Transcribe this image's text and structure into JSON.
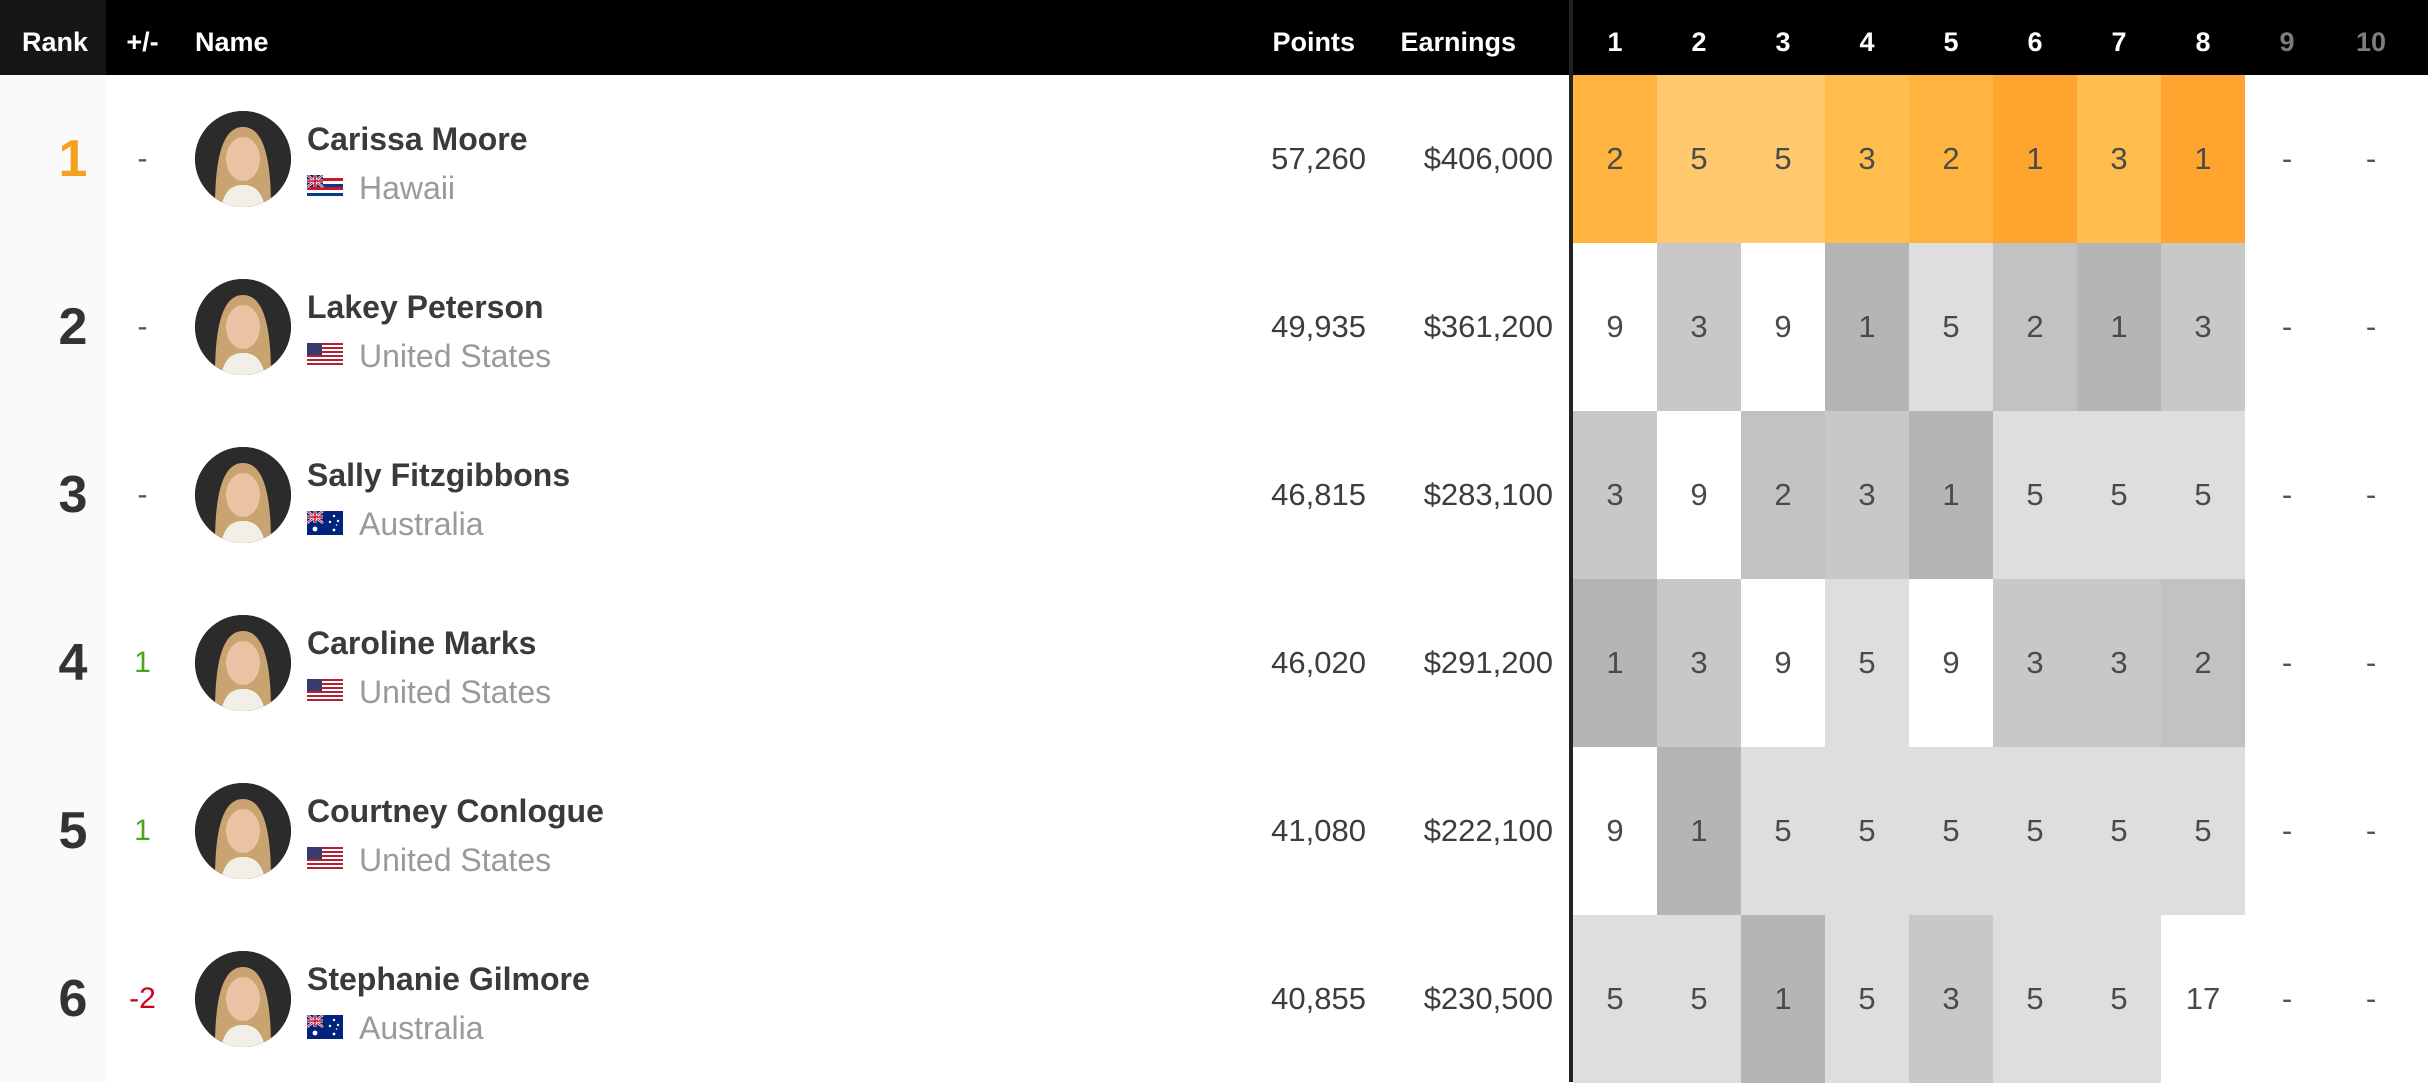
{
  "header": {
    "rank": "Rank",
    "change": "+/-",
    "name": "Name",
    "points": "Points",
    "earnings": "Earnings",
    "events": [
      "1",
      "2",
      "3",
      "4",
      "5",
      "6",
      "7",
      "8",
      "9",
      "10"
    ]
  },
  "colors": {
    "gold_rank": "#f5a020",
    "up": "#4ea31d",
    "down": "#d0021b",
    "result_1": "#ffa52f",
    "result_2": "#ffb440",
    "result_3": "#ffbd4e",
    "result_5": "#ffc970"
  },
  "rows": [
    {
      "rank": "1",
      "change": "-",
      "change_dir": "none",
      "name": "Carissa Moore",
      "country": "Hawaii",
      "flag": "hawaii-flag-icon",
      "points": "57,260",
      "earnings": "$406,000",
      "results": [
        "2",
        "5",
        "5",
        "3",
        "2",
        "1",
        "3",
        "1",
        "-",
        "-"
      ]
    },
    {
      "rank": "2",
      "change": "-",
      "change_dir": "none",
      "name": "Lakey Peterson",
      "country": "United States",
      "flag": "us-flag-icon",
      "points": "49,935",
      "earnings": "$361,200",
      "results": [
        "9",
        "3",
        "9",
        "1",
        "5",
        "2",
        "1",
        "3",
        "-",
        "-"
      ]
    },
    {
      "rank": "3",
      "change": "-",
      "change_dir": "none",
      "name": "Sally Fitzgibbons",
      "country": "Australia",
      "flag": "australia-flag-icon",
      "points": "46,815",
      "earnings": "$283,100",
      "results": [
        "3",
        "9",
        "2",
        "3",
        "1",
        "5",
        "5",
        "5",
        "-",
        "-"
      ]
    },
    {
      "rank": "4",
      "change": "1",
      "change_dir": "up",
      "name": "Caroline Marks",
      "country": "United States",
      "flag": "us-flag-icon",
      "points": "46,020",
      "earnings": "$291,200",
      "results": [
        "1",
        "3",
        "9",
        "5",
        "9",
        "3",
        "3",
        "2",
        "-",
        "-"
      ]
    },
    {
      "rank": "5",
      "change": "1",
      "change_dir": "up",
      "name": "Courtney Conlogue",
      "country": "United States",
      "flag": "us-flag-icon",
      "points": "41,080",
      "earnings": "$222,100",
      "results": [
        "9",
        "1",
        "5",
        "5",
        "5",
        "5",
        "5",
        "5",
        "-",
        "-"
      ]
    },
    {
      "rank": "6",
      "change": "-2",
      "change_dir": "down",
      "name": "Stephanie Gilmore",
      "country": "Australia",
      "flag": "australia-flag-icon",
      "points": "40,855",
      "earnings": "$230,500",
      "results": [
        "5",
        "5",
        "1",
        "5",
        "3",
        "5",
        "5",
        "17",
        "-",
        "-"
      ]
    }
  ]
}
